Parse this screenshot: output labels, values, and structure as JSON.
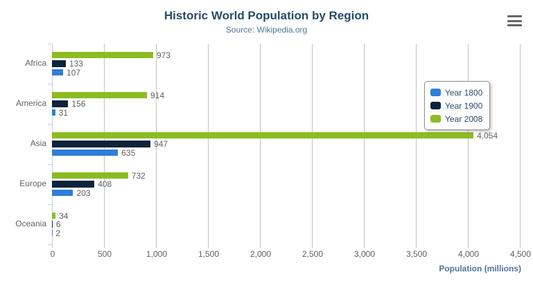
{
  "header": {
    "title": "Historic World Population by Region",
    "subtitle": "Source: Wikipedia.org"
  },
  "export_menu": {
    "icon": "hamburger-icon"
  },
  "theme": {
    "title_color": "#274b6d",
    "subtitle_color": "#4d759e",
    "axis_title_color": "#4d759e",
    "label_color": "#606060",
    "grid_color": "#c3c3c3",
    "axis_line_color": "#c0d0e0",
    "legend_border_color": "#909090",
    "legend_text_color": "#274b6d",
    "menu_icon_color": "#666666"
  },
  "chart_data": {
    "type": "bar",
    "orientation": "horizontal",
    "title": "Historic World Population by Region",
    "subtitle": "Source: Wikipedia.org",
    "categories": [
      "Africa",
      "America",
      "Asia",
      "Europe",
      "Oceania"
    ],
    "series": [
      {
        "name": "Year 1800",
        "color": "#2f7ed8",
        "values": [
          107,
          31,
          635,
          203,
          2
        ],
        "value_labels": [
          "107",
          "31",
          "635",
          "203",
          "2"
        ]
      },
      {
        "name": "Year 1900",
        "color": "#0d233a",
        "values": [
          133,
          156,
          947,
          408,
          6
        ],
        "value_labels": [
          "133",
          "156",
          "947",
          "408",
          "6"
        ]
      },
      {
        "name": "Year 2008",
        "color": "#8bbc21",
        "values": [
          973,
          914,
          4054,
          732,
          34
        ],
        "value_labels": [
          "973",
          "914",
          "4,054",
          "732",
          "34"
        ]
      }
    ],
    "bar_order_top_to_bottom": [
      "Year 2008",
      "Year 1900",
      "Year 1800"
    ],
    "xlabel": "Population (millions)",
    "xlabel_align": "high",
    "xlim": [
      0,
      4500
    ],
    "x_ticks": [
      0,
      500,
      1000,
      1500,
      2000,
      2500,
      3000,
      3500,
      4000,
      4500
    ],
    "x_tick_labels": [
      "0",
      "500",
      "1,000",
      "1,500",
      "2,000",
      "2,500",
      "3,000",
      "3,500",
      "4,000",
      "4,500"
    ],
    "grid": true,
    "legend_position": "right-middle",
    "legend_entries": [
      "Year 1800",
      "Year 1900",
      "Year 2008"
    ]
  }
}
